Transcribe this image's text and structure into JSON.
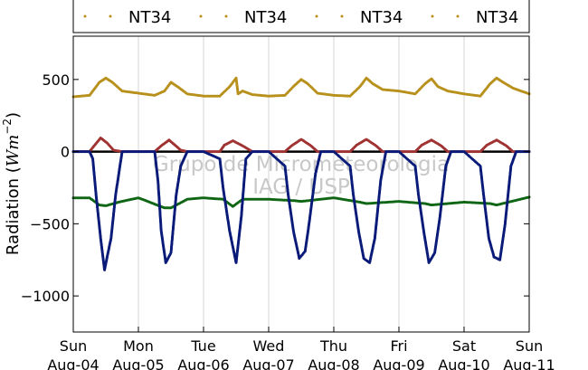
{
  "chart_data": {
    "type": "scatter",
    "ylabel": "Radiation (Wm⁻²)",
    "ylabel_main": "Radiation (",
    "ylabel_unit": "Wm",
    "ylabel_exp": "−2",
    "ylabel_close": ")",
    "ylim": [
      -1250,
      800
    ],
    "yticks": [
      500,
      0,
      -500,
      -1000
    ],
    "ytick_labels": [
      "500",
      "0",
      "−500",
      "−1000"
    ],
    "xlim": [
      0,
      7
    ],
    "xticks": [
      {
        "x": 0,
        "day": "Sun",
        "date": "Aug-04"
      },
      {
        "x": 1,
        "day": "Mon",
        "date": "Aug-05"
      },
      {
        "x": 2,
        "day": "Tue",
        "date": "Aug-06"
      },
      {
        "x": 3,
        "day": "Wed",
        "date": "Aug-07"
      },
      {
        "x": 4,
        "day": "Thu",
        "date": "Aug-08"
      },
      {
        "x": 5,
        "day": "Fri",
        "date": "Aug-09"
      },
      {
        "x": 6,
        "day": "Sat",
        "date": "Aug-10"
      },
      {
        "x": 7,
        "day": "Sun",
        "date": "Aug-11"
      }
    ],
    "grid": "vertical",
    "legend_placement": "top",
    "legend": [
      "NT34",
      "NT34",
      "NT34",
      "NT34"
    ],
    "watermark_line1": "Grupo de Micrometeorologia",
    "watermark_line2": "IAG / USP",
    "series": [
      {
        "color": "#b8901c",
        "x": [
          0,
          0.25,
          0.4,
          0.5,
          0.6,
          0.75,
          1.0,
          1.25,
          1.4,
          1.5,
          1.6,
          1.75,
          2.0,
          2.25,
          2.4,
          2.5,
          2.53,
          2.6,
          2.75,
          3.0,
          3.25,
          3.4,
          3.5,
          3.6,
          3.75,
          4.0,
          4.25,
          4.4,
          4.5,
          4.6,
          4.75,
          5.0,
          5.25,
          5.4,
          5.5,
          5.6,
          5.75,
          6.0,
          6.25,
          6.4,
          6.5,
          6.6,
          6.75,
          7.0
        ],
        "y": [
          380,
          390,
          480,
          510,
          480,
          420,
          405,
          390,
          420,
          480,
          450,
          400,
          385,
          385,
          450,
          510,
          400,
          420,
          395,
          385,
          390,
          460,
          500,
          470,
          405,
          390,
          385,
          450,
          510,
          470,
          430,
          420,
          400,
          470,
          505,
          450,
          420,
          400,
          385,
          470,
          510,
          480,
          440,
          400
        ]
      },
      {
        "color": "#a03232",
        "x": [
          0,
          0.25,
          0.32,
          0.42,
          0.52,
          0.62,
          0.75,
          1.0,
          1.25,
          1.35,
          1.47,
          1.55,
          1.65,
          1.75,
          2.0,
          2.25,
          2.32,
          2.45,
          2.6,
          2.75,
          3.0,
          3.25,
          3.35,
          3.5,
          3.65,
          3.75,
          4.0,
          4.25,
          4.35,
          4.5,
          4.65,
          4.75,
          5.0,
          5.25,
          5.35,
          5.5,
          5.65,
          5.75,
          6.0,
          6.25,
          6.35,
          6.5,
          6.65,
          6.75,
          7.0
        ],
        "y": [
          0,
          0,
          40,
          95,
          60,
          10,
          0,
          0,
          0,
          40,
          80,
          50,
          10,
          0,
          0,
          0,
          45,
          75,
          40,
          0,
          0,
          0,
          40,
          85,
          40,
          0,
          0,
          0,
          45,
          85,
          40,
          0,
          0,
          0,
          45,
          80,
          40,
          0,
          0,
          0,
          45,
          80,
          40,
          0,
          0
        ]
      },
      {
        "color": "#0f6614",
        "x": [
          0,
          0.25,
          0.4,
          0.5,
          0.7,
          1.0,
          1.4,
          1.5,
          1.75,
          2.0,
          2.3,
          2.45,
          2.6,
          3.0,
          3.4,
          3.5,
          4.0,
          4.4,
          4.5,
          5.0,
          5.4,
          5.5,
          6.0,
          6.4,
          6.5,
          7.0
        ],
        "y": [
          -320,
          -320,
          -370,
          -375,
          -350,
          -320,
          -390,
          -390,
          -330,
          -320,
          -330,
          -380,
          -330,
          -330,
          -340,
          -345,
          -320,
          -350,
          -360,
          -345,
          -360,
          -370,
          -350,
          -360,
          -370,
          -315
        ]
      },
      {
        "color": "#0a1a78",
        "x": [
          0,
          0.25,
          0.3,
          0.35,
          0.42,
          0.48,
          0.52,
          0.58,
          0.65,
          0.75,
          1.0,
          1.25,
          1.3,
          1.35,
          1.42,
          1.5,
          1.58,
          1.65,
          1.75,
          2.0,
          2.25,
          2.3,
          2.4,
          2.5,
          2.58,
          2.65,
          2.75,
          3.0,
          3.25,
          3.3,
          3.38,
          3.47,
          3.56,
          3.62,
          3.72,
          3.8,
          4.0,
          4.25,
          4.3,
          4.38,
          4.46,
          4.55,
          4.63,
          4.72,
          4.8,
          5.0,
          5.25,
          5.3,
          5.38,
          5.46,
          5.55,
          5.63,
          5.72,
          5.8,
          6.0,
          6.25,
          6.3,
          6.38,
          6.46,
          6.55,
          6.63,
          6.72,
          6.8,
          7.0
        ],
        "y": [
          0,
          0,
          -50,
          -300,
          -600,
          -820,
          -730,
          -600,
          -300,
          0,
          0,
          0,
          -200,
          -550,
          -770,
          -700,
          -300,
          -100,
          0,
          0,
          -50,
          -250,
          -550,
          -770,
          -450,
          -50,
          0,
          0,
          -100,
          -300,
          -550,
          -740,
          -690,
          -500,
          -150,
          0,
          0,
          -100,
          -300,
          -550,
          -740,
          -770,
          -600,
          -200,
          0,
          0,
          -100,
          -300,
          -550,
          -770,
          -700,
          -450,
          -100,
          0,
          0,
          -100,
          -300,
          -600,
          -730,
          -750,
          -500,
          -100,
          0,
          0
        ]
      }
    ]
  }
}
